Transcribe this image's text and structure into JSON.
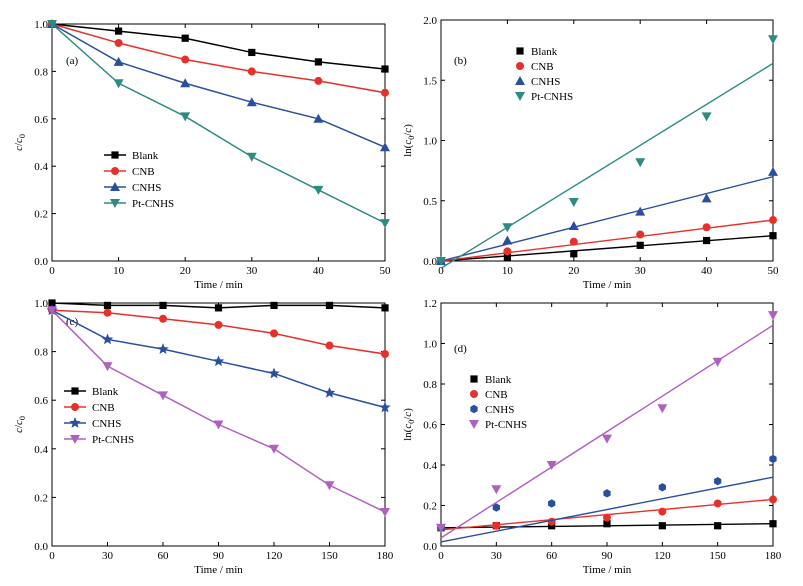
{
  "chart_data": [
    {
      "panel_label": "(a)",
      "type": "line",
      "xlabel": "Time / min",
      "ylabel": "c/c0",
      "xlim": [
        0,
        50
      ],
      "ylim": [
        0,
        1.0
      ],
      "xticks": [
        0,
        10,
        20,
        30,
        40,
        50
      ],
      "yticks": [
        0.0,
        0.2,
        0.4,
        0.6,
        0.8,
        1.0
      ],
      "xtick_labels": [
        "0",
        "10",
        "20",
        "30",
        "40",
        "50"
      ],
      "ytick_labels": [
        "0.0",
        "0.2",
        "0.4",
        "0.6",
        "0.8",
        "1.0"
      ],
      "legend_position": "lower-left",
      "series": [
        {
          "name": "Blank",
          "color": "#000000",
          "marker": "square",
          "x": [
            0,
            10,
            20,
            30,
            40,
            50
          ],
          "y": [
            1.0,
            0.97,
            0.94,
            0.88,
            0.84,
            0.81
          ]
        },
        {
          "name": "CNB",
          "color": "#e8302a",
          "marker": "circle",
          "x": [
            0,
            10,
            20,
            30,
            40,
            50
          ],
          "y": [
            1.0,
            0.92,
            0.85,
            0.8,
            0.76,
            0.71
          ]
        },
        {
          "name": "CNHS",
          "color": "#2a4fa0",
          "marker": "triangle-up",
          "x": [
            0,
            10,
            20,
            30,
            40,
            50
          ],
          "y": [
            1.0,
            0.84,
            0.75,
            0.67,
            0.6,
            0.48
          ]
        },
        {
          "name": "Pt-CNHS",
          "color": "#2e8b80",
          "marker": "triangle-down",
          "x": [
            0,
            10,
            20,
            30,
            40,
            50
          ],
          "y": [
            1.0,
            0.75,
            0.61,
            0.44,
            0.3,
            0.16
          ]
        }
      ]
    },
    {
      "panel_label": "(b)",
      "type": "scatter",
      "xlabel": "Time / min",
      "ylabel": "ln(c0/c)",
      "xlim": [
        0,
        50
      ],
      "ylim": [
        0,
        2.0
      ],
      "xticks": [
        0,
        10,
        20,
        30,
        40,
        50
      ],
      "yticks": [
        0.0,
        0.5,
        1.0,
        1.5,
        2.0
      ],
      "xtick_labels": [
        "0",
        "10",
        "20",
        "30",
        "40",
        "50"
      ],
      "ytick_labels": [
        "0.0",
        "0.5",
        "1.0",
        "1.5",
        "2.0"
      ],
      "legend_position": "top-left",
      "series": [
        {
          "name": "Blank",
          "color": "#000000",
          "marker": "square",
          "x": [
            0,
            10,
            20,
            30,
            40,
            50
          ],
          "y": [
            0.0,
            0.03,
            0.06,
            0.13,
            0.17,
            0.21
          ],
          "fit": [
            0.0,
            0.21
          ]
        },
        {
          "name": "CNB",
          "color": "#e8302a",
          "marker": "circle",
          "x": [
            0,
            10,
            20,
            30,
            40,
            50
          ],
          "y": [
            0.0,
            0.08,
            0.16,
            0.22,
            0.28,
            0.34
          ],
          "fit": [
            0.0,
            0.34
          ]
        },
        {
          "name": "CNHS",
          "color": "#2a4fa0",
          "marker": "triangle-up",
          "x": [
            0,
            10,
            20,
            30,
            40,
            50
          ],
          "y": [
            0.0,
            0.17,
            0.29,
            0.41,
            0.52,
            0.74
          ],
          "fit": [
            0.0,
            0.7
          ]
        },
        {
          "name": "Pt-CNHS",
          "color": "#2e8b80",
          "marker": "triangle-down",
          "x": [
            0,
            10,
            20,
            30,
            40,
            50
          ],
          "y": [
            0.0,
            0.28,
            0.49,
            0.82,
            1.2,
            1.84
          ],
          "fit": [
            -0.06,
            1.64
          ]
        }
      ]
    },
    {
      "panel_label": "(c)",
      "type": "line",
      "xlabel": "Time / min",
      "ylabel": "c/c0",
      "xlim": [
        0,
        180
      ],
      "ylim": [
        0,
        1.0
      ],
      "xticks": [
        0,
        30,
        60,
        90,
        120,
        150,
        180
      ],
      "yticks": [
        0.0,
        0.2,
        0.4,
        0.6,
        0.8,
        1.0
      ],
      "xtick_labels": [
        "0",
        "30",
        "60",
        "90",
        "120",
        "150",
        "180"
      ],
      "ytick_labels": [
        "0.0",
        "0.2",
        "0.4",
        "0.6",
        "0.8",
        "1.0"
      ],
      "legend_position": "lower-left",
      "series": [
        {
          "name": "Blank",
          "color": "#000000",
          "marker": "square",
          "x": [
            0,
            30,
            60,
            90,
            120,
            150,
            180
          ],
          "y": [
            1.0,
            0.99,
            0.99,
            0.98,
            0.99,
            0.99,
            0.98
          ]
        },
        {
          "name": "CNB",
          "color": "#e8302a",
          "marker": "circle",
          "x": [
            0,
            30,
            60,
            90,
            120,
            150,
            180
          ],
          "y": [
            0.97,
            0.96,
            0.935,
            0.91,
            0.875,
            0.825,
            0.79
          ]
        },
        {
          "name": "CNHS",
          "color": "#2a4fa0",
          "marker": "star",
          "x": [
            0,
            30,
            60,
            90,
            120,
            150,
            180
          ],
          "y": [
            0.97,
            0.85,
            0.81,
            0.76,
            0.71,
            0.63,
            0.57
          ]
        },
        {
          "name": "Pt-CNHS",
          "color": "#b060c0",
          "marker": "triangle-down",
          "x": [
            0,
            30,
            60,
            90,
            120,
            150,
            180
          ],
          "y": [
            0.97,
            0.74,
            0.62,
            0.5,
            0.4,
            0.25,
            0.14
          ]
        }
      ]
    },
    {
      "panel_label": "(d)",
      "type": "scatter",
      "xlabel": "Time / min",
      "ylabel": "ln(c0/c)",
      "xlim": [
        0,
        180
      ],
      "ylim": [
        0,
        1.2
      ],
      "xticks": [
        0,
        30,
        60,
        90,
        120,
        150,
        180
      ],
      "yticks": [
        0.0,
        0.2,
        0.4,
        0.6,
        0.8,
        1.0,
        1.2
      ],
      "xtick_labels": [
        "0",
        "30",
        "60",
        "90",
        "120",
        "150",
        "180"
      ],
      "ytick_labels": [
        "0.0",
        "0.2",
        "0.4",
        "0.6",
        "0.8",
        "1.0",
        "1.2"
      ],
      "legend_position": "center-left",
      "series": [
        {
          "name": "Blank",
          "color": "#000000",
          "marker": "square",
          "x": [
            0,
            30,
            60,
            90,
            120,
            150,
            180
          ],
          "y": [
            0.09,
            0.1,
            0.1,
            0.11,
            0.1,
            0.1,
            0.11
          ],
          "fit": [
            0.09,
            0.11
          ]
        },
        {
          "name": "CNB",
          "color": "#e8302a",
          "marker": "circle",
          "x": [
            0,
            30,
            60,
            90,
            120,
            150,
            180
          ],
          "y": [
            0.09,
            0.1,
            0.12,
            0.14,
            0.17,
            0.21,
            0.23
          ],
          "fit": [
            0.08,
            0.23
          ]
        },
        {
          "name": "CNHS",
          "color": "#2a4fa0",
          "marker": "hexagon",
          "x": [
            0,
            30,
            60,
            90,
            120,
            150,
            180
          ],
          "y": [
            0.09,
            0.19,
            0.21,
            0.26,
            0.29,
            0.32,
            0.43
          ],
          "fit": [
            0.02,
            0.34
          ]
        },
        {
          "name": "Pt-CNHS",
          "color": "#b060c0",
          "marker": "triangle-down",
          "x": [
            0,
            30,
            60,
            90,
            120,
            150,
            180
          ],
          "y": [
            0.09,
            0.28,
            0.4,
            0.53,
            0.68,
            0.91,
            1.14
          ],
          "fit": [
            0.04,
            1.09
          ]
        }
      ]
    }
  ]
}
